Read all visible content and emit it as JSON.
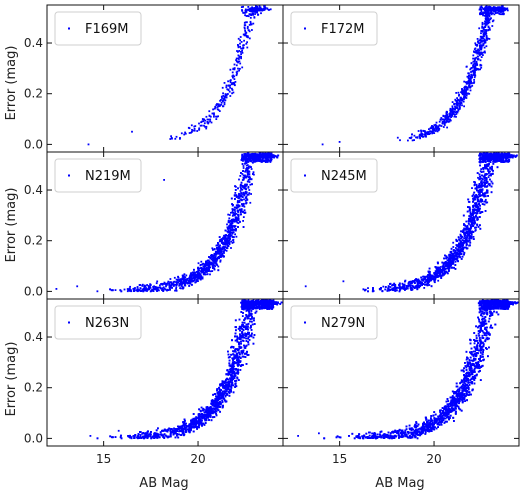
{
  "chart_data": {
    "type": "scatter",
    "layout": {
      "rows": 3,
      "cols": 2,
      "sharex": true,
      "sharey": true
    },
    "xlim": [
      12,
      24.5
    ],
    "ylim": [
      -0.03,
      0.55
    ],
    "xticks": [
      15,
      20
    ],
    "yticks": [
      0.0,
      0.2,
      0.4
    ],
    "xlabel": "AB Mag",
    "ylabel": "Error (mag)",
    "marker_color": "#0000ff",
    "legend_position": "top-left",
    "panels": [
      {
        "name": "F169M",
        "mag_bright": 17.8,
        "mag_faint": 23.5,
        "mag_peak": 22.8,
        "n_points": 380,
        "spread": 0.3,
        "outliers": [
          [
            14.2,
            0.0
          ],
          [
            16.5,
            0.05
          ]
        ]
      },
      {
        "name": "F172M",
        "mag_bright": 17.6,
        "mag_faint": 23.6,
        "mag_peak": 22.9,
        "n_points": 900,
        "spread": 0.35,
        "outliers": [
          [
            14.1,
            0.0
          ],
          [
            15.0,
            0.01
          ]
        ]
      },
      {
        "name": "N219M",
        "mag_bright": 14.5,
        "mag_faint": 23.8,
        "mag_peak": 22.8,
        "n_points": 2000,
        "spread": 0.55,
        "outliers": [
          [
            12.5,
            0.01
          ],
          [
            13.6,
            0.02
          ],
          [
            18.2,
            0.44
          ]
        ]
      },
      {
        "name": "N245M",
        "mag_bright": 15.5,
        "mag_faint": 23.9,
        "mag_peak": 22.9,
        "n_points": 2500,
        "spread": 0.6,
        "outliers": [
          [
            13.2,
            0.02
          ],
          [
            15.2,
            0.04
          ]
        ]
      },
      {
        "name": "N263N",
        "mag_bright": 14.5,
        "mag_faint": 23.9,
        "mag_peak": 22.8,
        "n_points": 3000,
        "spread": 0.65,
        "outliers": [
          [
            14.3,
            0.01
          ],
          [
            15.8,
            0.03
          ]
        ]
      },
      {
        "name": "N279N",
        "mag_bright": 14.0,
        "mag_faint": 23.9,
        "mag_peak": 22.9,
        "n_points": 3200,
        "spread": 0.65,
        "outliers": [
          [
            12.8,
            0.01
          ],
          [
            13.9,
            0.02
          ]
        ]
      }
    ]
  }
}
